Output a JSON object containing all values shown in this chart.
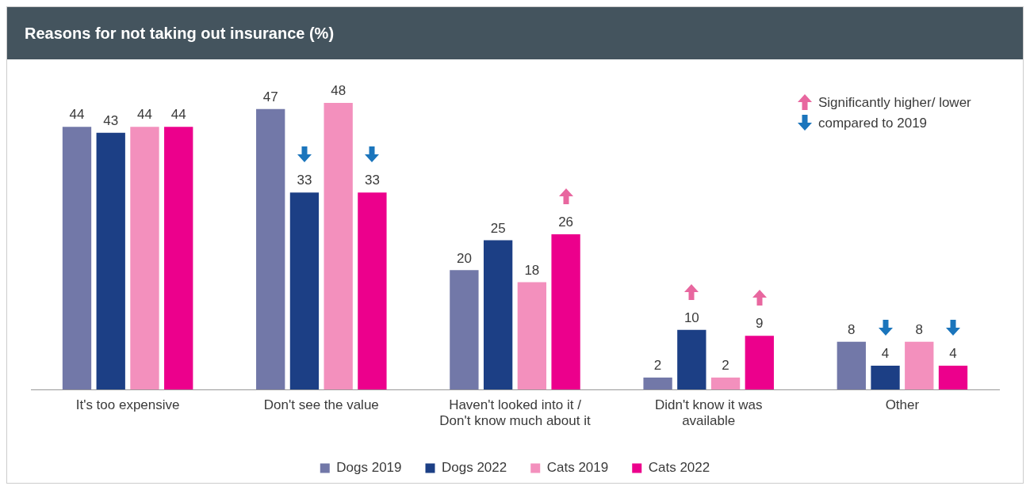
{
  "chart_data": {
    "type": "bar",
    "title": "Reasons for not taking out insurance (%)",
    "categories": [
      "It's too expensive",
      "Don't see the value",
      "Haven't looked into it / Don't know much about it",
      "Didn't know it was available",
      "Other"
    ],
    "series": [
      {
        "name": "Dogs 2019",
        "color": "#7278a8",
        "values": [
          44,
          47,
          20,
          2,
          8
        ]
      },
      {
        "name": "Dogs 2022",
        "color": "#1c3f85",
        "values": [
          43,
          33,
          25,
          10,
          4
        ]
      },
      {
        "name": "Cats 2019",
        "color": "#f390bd",
        "values": [
          44,
          48,
          18,
          2,
          8
        ]
      },
      {
        "name": "Cats 2022",
        "color": "#ec008c",
        "values": [
          44,
          33,
          26,
          9,
          4
        ]
      }
    ],
    "data_labels": true,
    "grid": false,
    "legend": "bottom",
    "annotations": [
      "Significantly higher/ lower compared to 2019"
    ]
  }
}
